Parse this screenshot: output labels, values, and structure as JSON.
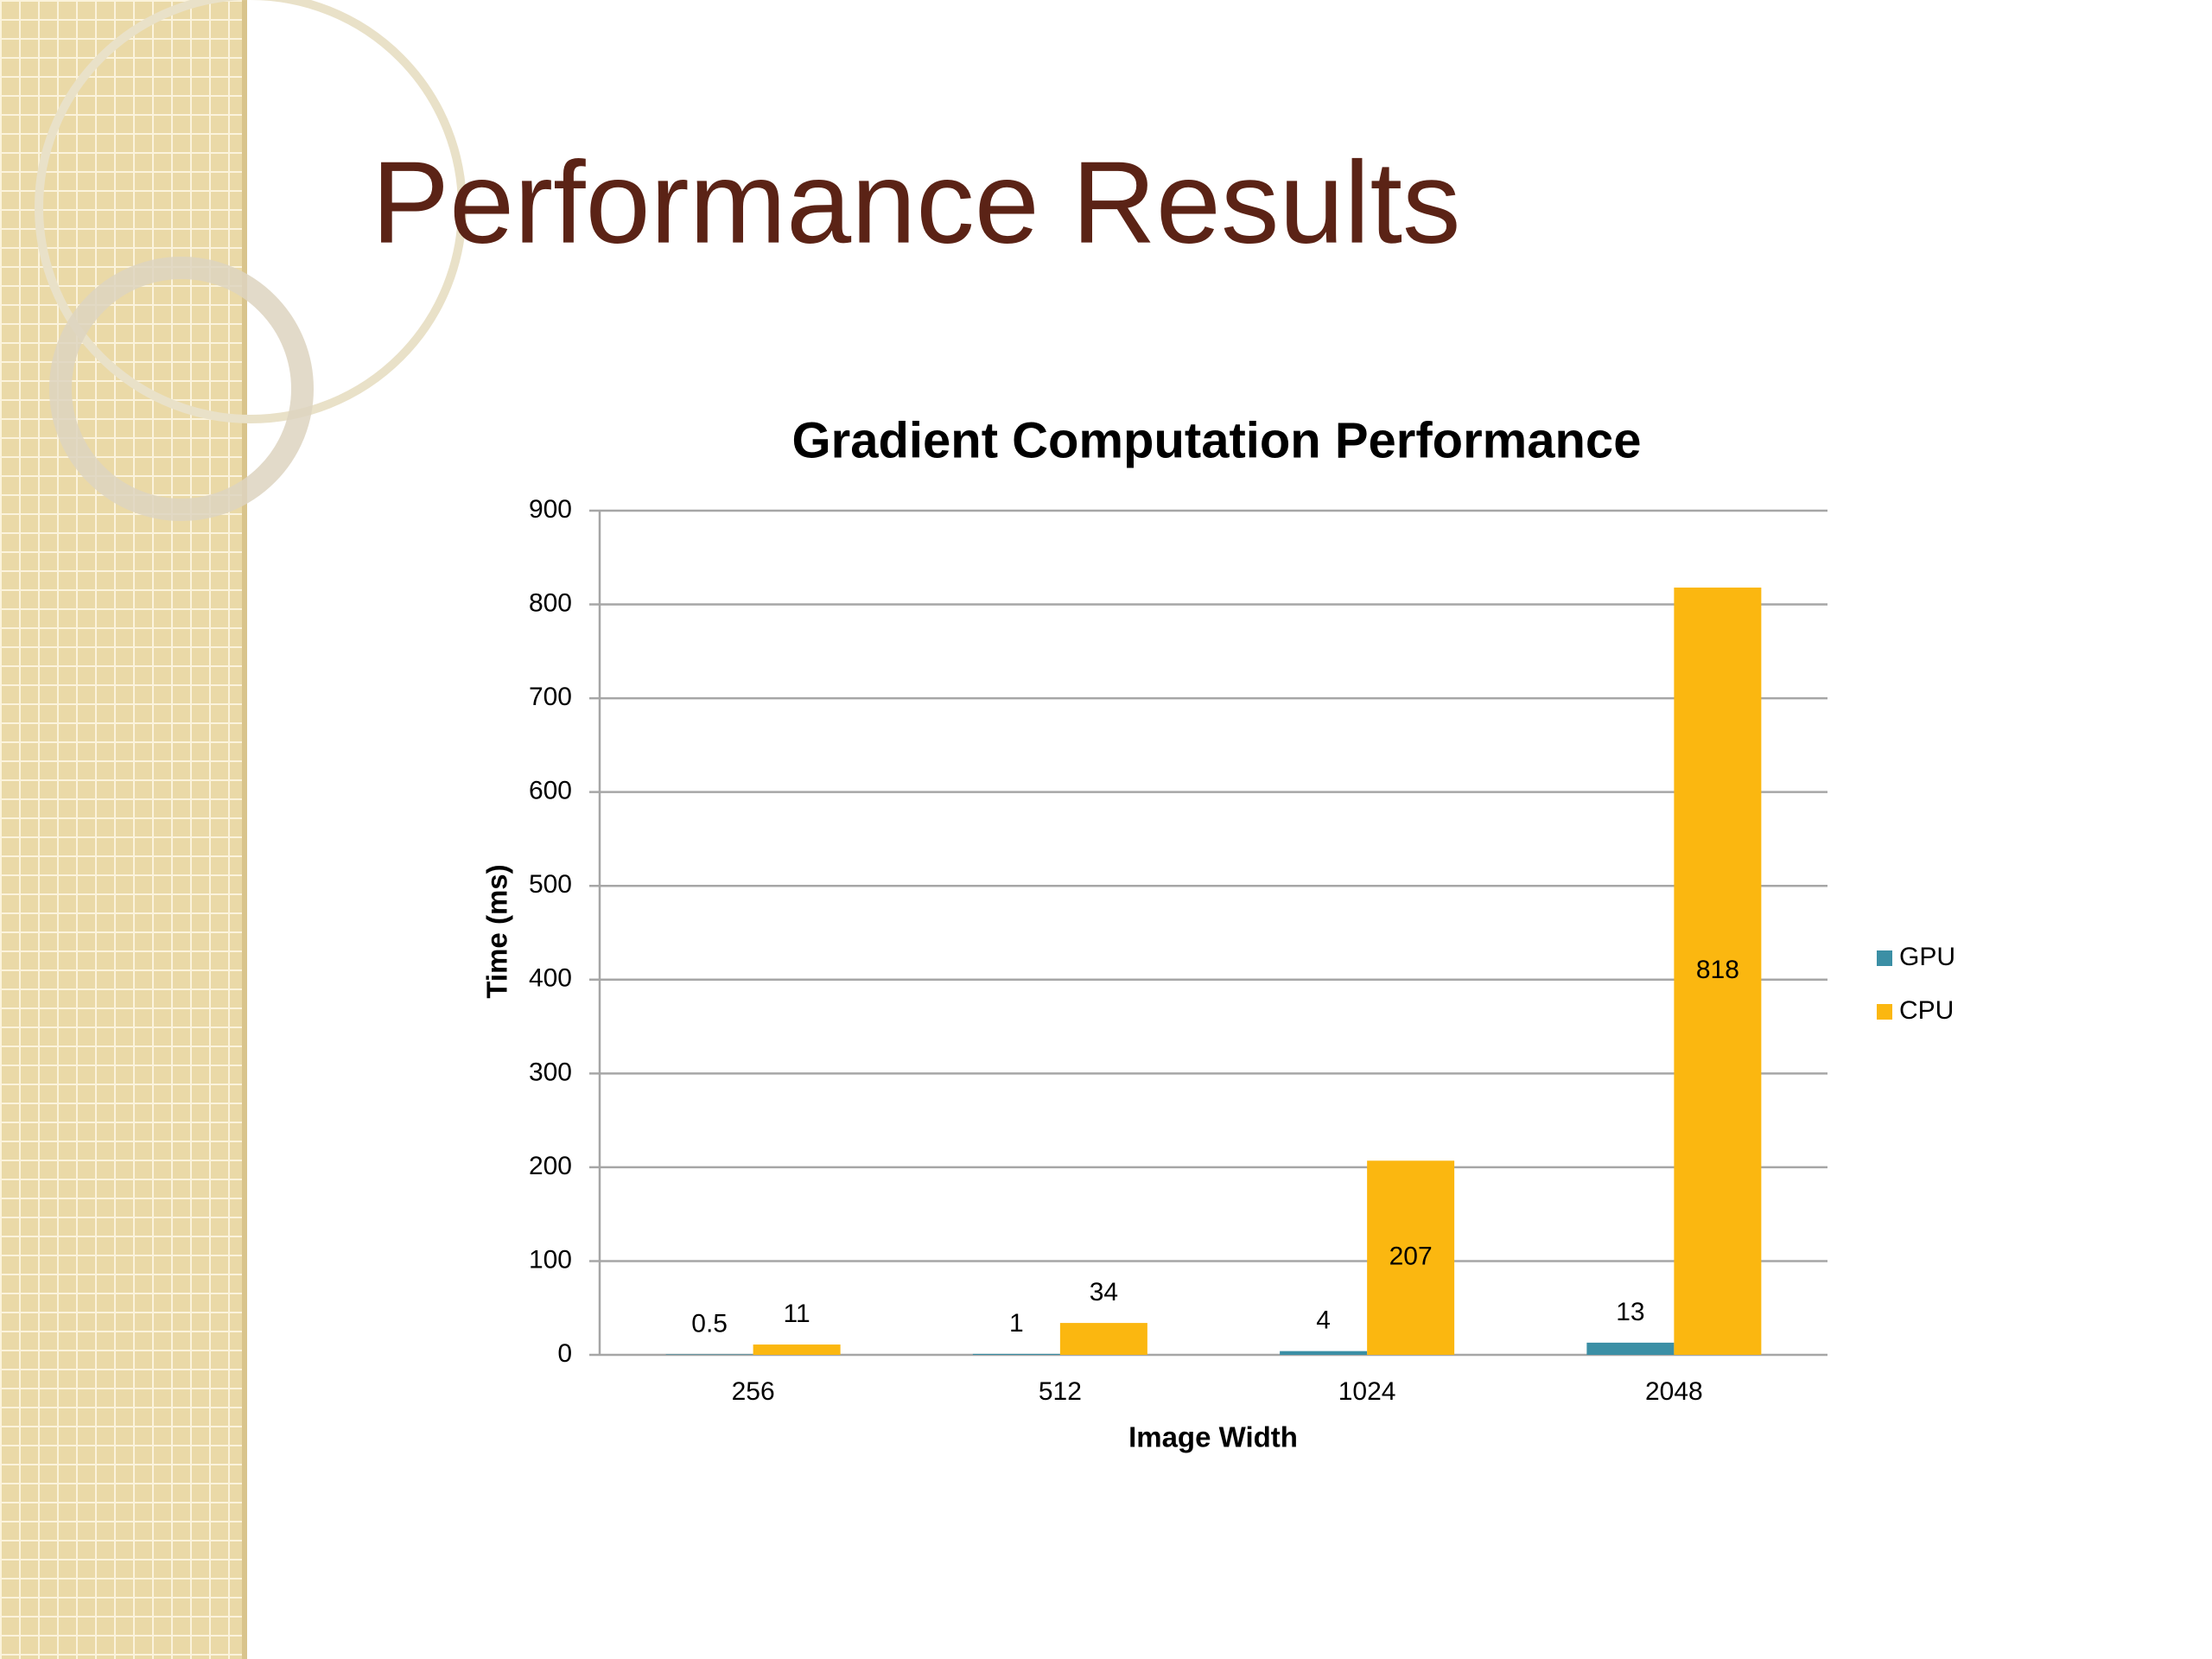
{
  "slide_title": "Performance Results",
  "chart_data": {
    "type": "bar",
    "title": "Gradient Computation Performance",
    "x_label": "Image Width",
    "y_label": "Time (ms)",
    "categories": [
      "256",
      "512",
      "1024",
      "2048"
    ],
    "series": [
      {
        "name": "GPU",
        "color": "#3b8fa5",
        "values": [
          0.5,
          1,
          4,
          13
        ]
      },
      {
        "name": "CPU",
        "color": "#fbb710",
        "values": [
          11,
          34,
          207,
          818
        ]
      }
    ],
    "ylim": [
      0,
      900
    ],
    "yticks": [
      0,
      100,
      200,
      300,
      400,
      500,
      600,
      700,
      800,
      900
    ],
    "grid": true,
    "legend": "right"
  }
}
